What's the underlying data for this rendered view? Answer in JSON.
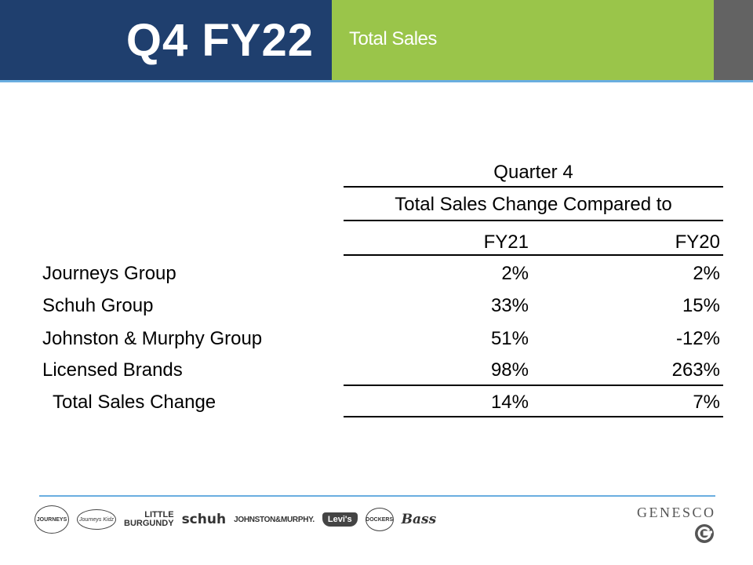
{
  "header": {
    "title": "Q4 FY22",
    "subtitle": "Total Sales"
  },
  "table": {
    "group_header": "Quarter 4",
    "sub_header": "Total Sales Change Compared to",
    "columns": [
      "FY21",
      "FY20"
    ],
    "rows": [
      {
        "label": "Journeys Group",
        "fy21": "2%",
        "fy20": "2%"
      },
      {
        "label": "Schuh Group",
        "fy21": "33%",
        "fy20": "15%"
      },
      {
        "label": "Johnston & Murphy Group",
        "fy21": "51%",
        "fy20": "-12%"
      },
      {
        "label": "Licensed Brands",
        "fy21": "98%",
        "fy20": "263%"
      }
    ],
    "total": {
      "label": "Total Sales Change",
      "fy21": "14%",
      "fy20": "7%"
    }
  },
  "footer": {
    "brands": [
      {
        "name": "journeys-logo",
        "text": "JOURNEYS"
      },
      {
        "name": "journeys-kidz-logo",
        "text": "Journeys Kidz"
      },
      {
        "name": "little-burgundy-logo",
        "text_top": "LITTLE",
        "text_bottom": "BURGUNDY"
      },
      {
        "name": "schuh-logo",
        "text": "schuh"
      },
      {
        "name": "johnston-murphy-logo",
        "text": "JOHNSTON&MURPHY."
      },
      {
        "name": "levis-logo",
        "text": "Levi's"
      },
      {
        "name": "dockers-logo",
        "text": "DOCKERS"
      },
      {
        "name": "bass-logo",
        "text": "Bass"
      }
    ],
    "company": "GENESCO",
    "accent_blue": "#6aaee0",
    "header_blue": "#1f3f6e",
    "header_green": "#9ac54a"
  }
}
